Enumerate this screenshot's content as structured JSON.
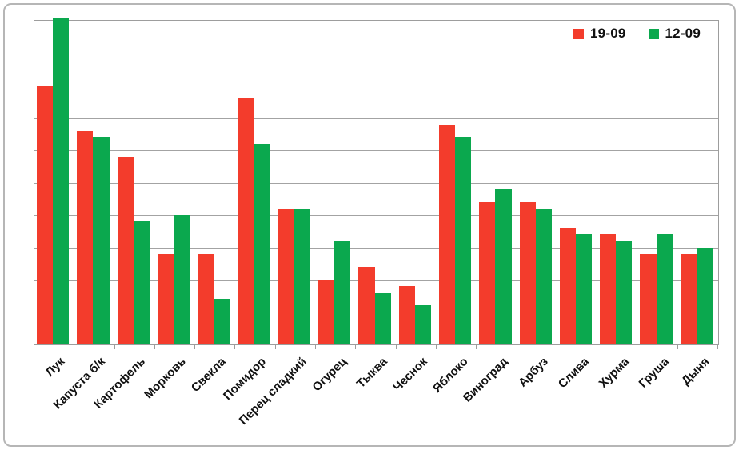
{
  "chart_data": {
    "type": "bar",
    "title": "",
    "xlabel": "",
    "ylabel": "",
    "categories": [
      "Лук",
      "Капуста б/к",
      "Картофель",
      "Морковь",
      "Свекла",
      "Помидор",
      "Перец сладкий",
      "Огурец",
      "Тыква",
      "Чеснок",
      "Яблоко",
      "Виноград",
      "Арбуз",
      "Слива",
      "Хурма",
      "Груша",
      "Дыня"
    ],
    "series": [
      {
        "name": "19-09",
        "color": "#f33c2c",
        "values": [
          80,
          66,
          58,
          28,
          28,
          76,
          42,
          20,
          24,
          18,
          68,
          44,
          44,
          36,
          34,
          28,
          28
        ]
      },
      {
        "name": "12-09",
        "color": "#0ba84e",
        "values": [
          101,
          64,
          38,
          40,
          14,
          62,
          42,
          32,
          16,
          12,
          64,
          48,
          42,
          34,
          32,
          34,
          30
        ]
      }
    ],
    "ylim": [
      0,
      100
    ],
    "gridline_step": 10,
    "y_axis_labels_visible": false,
    "grid": true,
    "legend_position": "top-right",
    "note": "green bar for Лук exceeds the plot top (clipped at axis maximum)"
  },
  "colors": {
    "gridline": "#a3a3a3",
    "plot_border": "#9d9d9d",
    "outer_border": "#b6b6b6",
    "label_text": "#111111",
    "background": "#ffffff"
  }
}
